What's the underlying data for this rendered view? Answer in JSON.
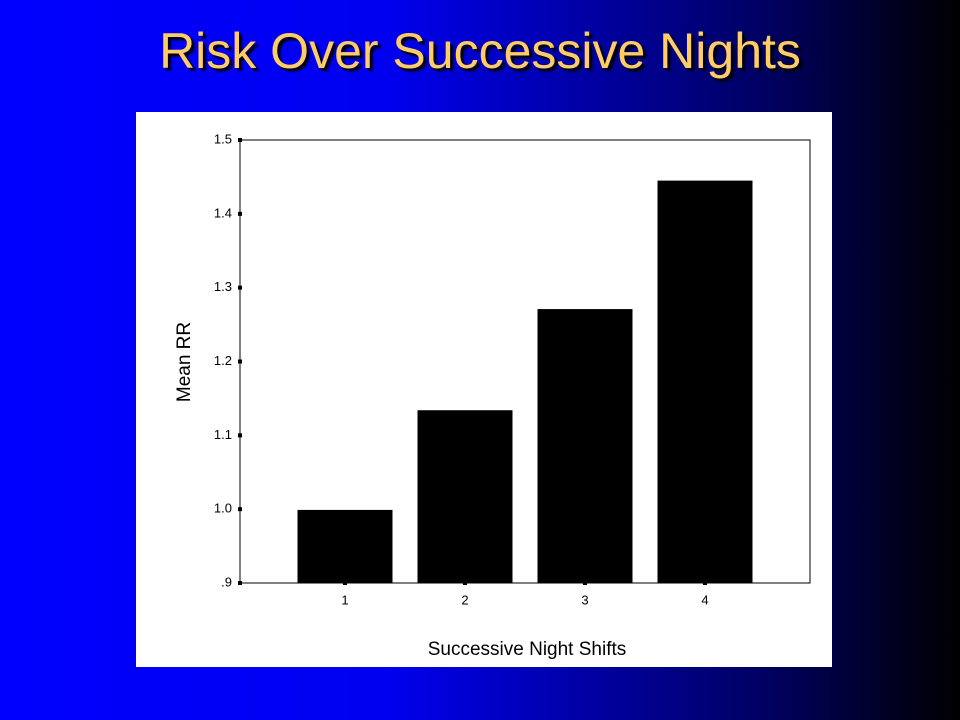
{
  "chart_data": {
    "type": "bar",
    "title": "Risk Over Successive Nights",
    "x_label": "Successive Night Shifts",
    "y_label": "Mean RR",
    "categories": [
      "1",
      "2",
      "3",
      "4"
    ],
    "values": [
      0.999,
      1.134,
      1.271,
      1.445
    ],
    "color": "#000000",
    "ylim": [
      0.9,
      1.5
    ],
    "yticks": [
      {
        "value": 0.9,
        "label": ".9"
      },
      {
        "value": 1.0,
        "label": "1.0"
      },
      1.1,
      1.2,
      1.3,
      1.4,
      1.5
    ]
  }
}
